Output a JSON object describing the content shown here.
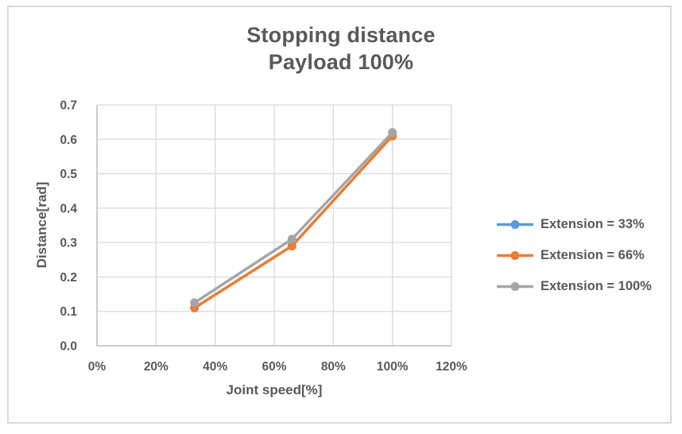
{
  "chart": {
    "title_line1": "Stopping distance",
    "title_line2": "Payload 100%",
    "xlabel": "Joint speed[%]",
    "ylabel": "Distance[rad]"
  },
  "chart_data": {
    "type": "line",
    "title": "Stopping distance Payload 100%",
    "xlabel": "Joint speed[%]",
    "ylabel": "Distance[rad]",
    "x": [
      33,
      66,
      100
    ],
    "series": [
      {
        "name": "Extension = 33%",
        "color": "#5B9BD5",
        "values": [
          0.11,
          0.29,
          0.61
        ]
      },
      {
        "name": "Extension = 66%",
        "color": "#ED7D31",
        "values": [
          0.11,
          0.29,
          0.61
        ]
      },
      {
        "name": "Extension = 100%",
        "color": "#A5A5A5",
        "values": [
          0.125,
          0.31,
          0.62
        ]
      }
    ],
    "xlim": [
      0,
      120
    ],
    "ylim": [
      0,
      0.7
    ],
    "xticks": [
      0,
      20,
      40,
      60,
      80,
      100,
      120
    ],
    "xtick_labels": [
      "0%",
      "20%",
      "40%",
      "60%",
      "80%",
      "100%",
      "120%"
    ],
    "yticks": [
      0,
      0.1,
      0.2,
      0.3,
      0.4,
      0.5,
      0.6,
      0.7
    ],
    "ytick_labels": [
      "0.0",
      "0.1",
      "0.2",
      "0.3",
      "0.4",
      "0.5",
      "0.6",
      "0.7"
    ],
    "grid": true,
    "legend_position": "right",
    "marker": "circle"
  },
  "colors": {
    "text": "#595959",
    "gridline": "#D9D9D9",
    "axis": "#BFBFBF",
    "frame_border": "#D9D9D9",
    "background": "#FFFFFF"
  }
}
